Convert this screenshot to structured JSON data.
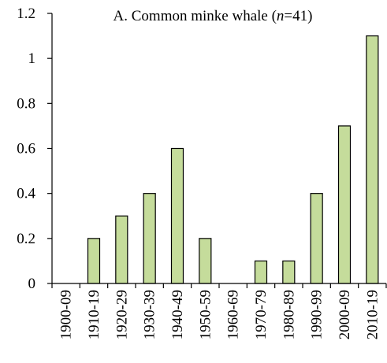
{
  "chart_data": {
    "type": "bar",
    "title_prefix": "A. Common minke whale (",
    "title_n": "n",
    "title_suffix": "=41)",
    "categories": [
      "1900-09",
      "1910-19",
      "1920-29",
      "1930-39",
      "1940-49",
      "1950-59",
      "1960-69",
      "1970-79",
      "1980-89",
      "1990-99",
      "2000-09",
      "2010-19"
    ],
    "values": [
      0,
      0.2,
      0.3,
      0.4,
      0.6,
      0.2,
      0,
      0.1,
      0.1,
      0.4,
      0.7,
      1.1
    ],
    "y_ticks": [
      "0",
      "0.2",
      "0.4",
      "0.6",
      "0.8",
      "1",
      "1.2"
    ],
    "ylim": [
      0,
      1.2
    ],
    "xlabel": "",
    "ylabel": "",
    "grid": false,
    "bar_color": "#c5dc9b",
    "edge_color": "#000000"
  }
}
